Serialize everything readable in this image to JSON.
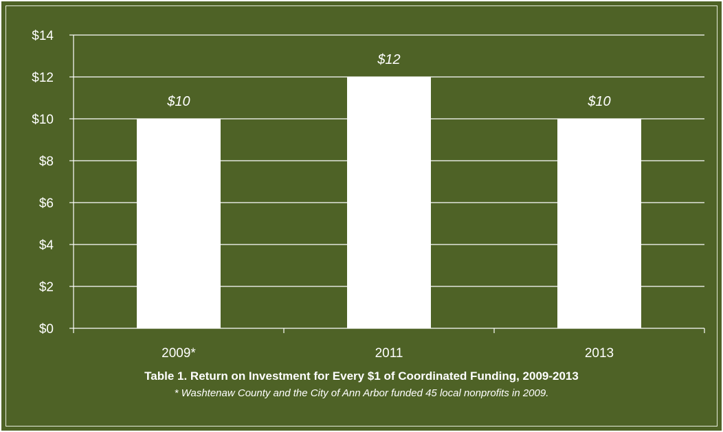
{
  "colors": {
    "background": "#4e6226",
    "bar": "#ffffff",
    "gridline": "#ffffff",
    "text": "#ffffff"
  },
  "chart_data": {
    "type": "bar",
    "categories": [
      "2009*",
      "2011",
      "2013"
    ],
    "values": [
      10,
      12,
      10
    ],
    "data_labels": [
      "$10",
      "$12",
      "$10"
    ],
    "yticks": [
      "$0",
      "$2",
      "$4",
      "$6",
      "$8",
      "$10",
      "$12",
      "$14"
    ],
    "ylim": [
      0,
      14
    ],
    "grid": true,
    "legend": "none",
    "title": "Table 1. Return on Investment for Every $1 of Coordinated Funding, 2009-2013",
    "note": "* Washtenaw County and the City of Ann Arbor funded 45 local nonprofits in 2009."
  }
}
